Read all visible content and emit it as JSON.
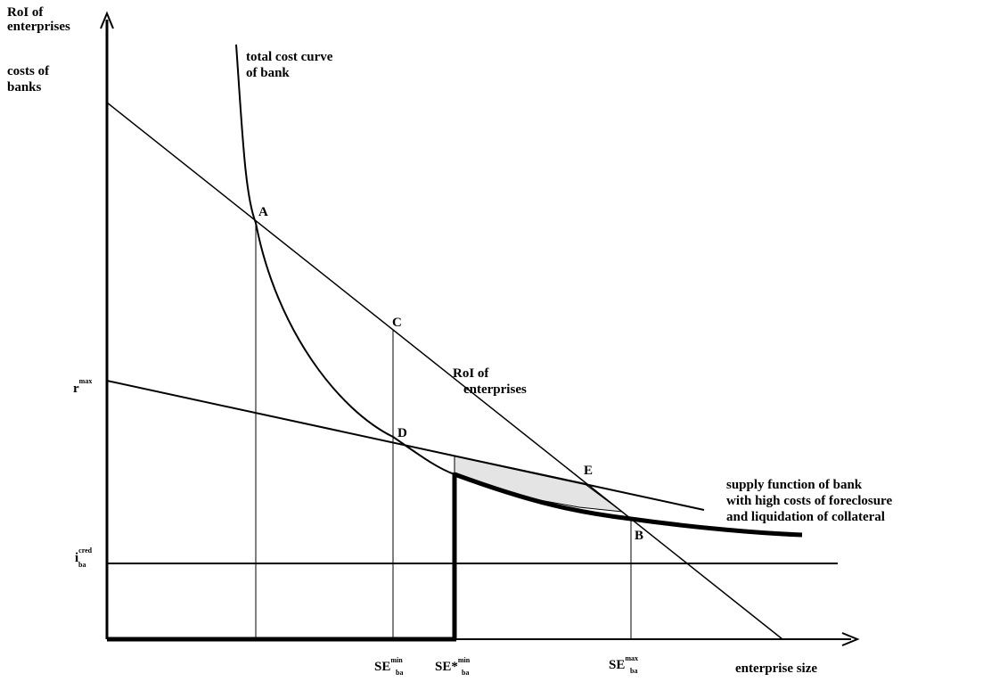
{
  "axis_labels": {
    "y": [
      "RoI of",
      "enterprises"
    ],
    "y2": [
      "costs of",
      "banks"
    ],
    "x": "enterprise size"
  },
  "curve_labels": {
    "total_cost": [
      "total cost curve",
      "of bank"
    ],
    "roi": [
      "RoI of",
      "enterprises"
    ],
    "supply": [
      "supply function of bank",
      "with high costs of foreclosure",
      "and liquidation of collateral"
    ]
  },
  "points": [
    "A",
    "B",
    "C",
    "D",
    "E"
  ],
  "y_labels": [
    {
      "base": "r",
      "sup": "max"
    },
    {
      "base": "i",
      "sup": "cred",
      "sub": "ba"
    }
  ],
  "x_labels": [
    {
      "base": "SE",
      "sup": "min",
      "sub": "ba"
    },
    {
      "base": "SE*",
      "sup": "min",
      "sub": "ba"
    },
    {
      "base": "SE",
      "sup": "max",
      "sub": "ba"
    }
  ]
}
